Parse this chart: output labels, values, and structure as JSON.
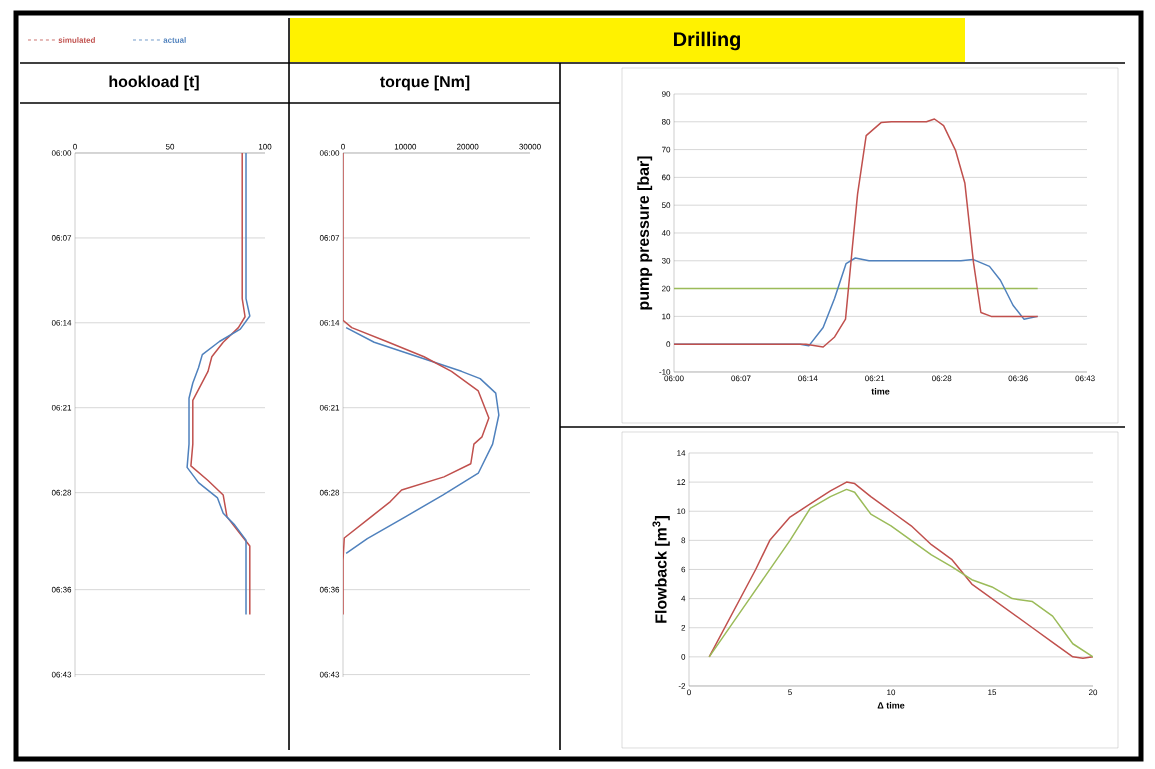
{
  "chart_data": [
    {
      "type": "line",
      "title": "hookload [t]",
      "annotations": [
        "Drilling"
      ],
      "legend": "top left",
      "xlim": [
        0,
        100
      ],
      "xticks": [
        0,
        50,
        100
      ],
      "ylim": [
        6.72,
        6
      ],
      "yticks": [
        {
          "value": 6,
          "label": "06:00"
        },
        {
          "value": 6.1167,
          "label": "06:07"
        },
        {
          "value": 6.2333,
          "label": "06:14"
        },
        {
          "value": 6.35,
          "label": "06:21"
        },
        {
          "value": 6.4667,
          "label": "06:28"
        },
        {
          "value": 6.6,
          "label": "06:36"
        },
        {
          "value": 6.7167,
          "label": "06:43"
        }
      ],
      "grid": "y",
      "series": [
        {
          "name": "simulated",
          "color": "#c0504d",
          "x": [
            88,
            88,
            89.5,
            86,
            78,
            72,
            70,
            66,
            62,
            62,
            61,
            70,
            78,
            80,
            86,
            92,
            92
          ],
          "values": [
            6,
            6.2,
            6.225,
            6.24,
            6.26,
            6.28,
            6.3,
            6.32,
            6.34,
            6.4,
            6.43,
            6.45,
            6.47,
            6.5,
            6.52,
            6.54,
            6.634
          ]
        },
        {
          "name": "actual",
          "color": "#4f81bd",
          "x": [
            90,
            90,
            92,
            87,
            76,
            67,
            65,
            62,
            60,
            60,
            59,
            65,
            75,
            78,
            84,
            90,
            90
          ],
          "values": [
            6,
            6.2,
            6.224,
            6.242,
            6.259,
            6.277,
            6.295,
            6.316,
            6.337,
            6.4,
            6.432,
            6.453,
            6.474,
            6.495,
            6.511,
            6.532,
            6.634
          ]
        }
      ]
    },
    {
      "type": "line",
      "title": "torque [Nm]",
      "xlim": [
        0,
        30000
      ],
      "xticks": [
        0,
        10000,
        20000,
        30000
      ],
      "ylim": [
        6.72,
        6
      ],
      "yticks": [
        {
          "value": 6,
          "label": "06:00"
        },
        {
          "value": 6.1167,
          "label": "06:07"
        },
        {
          "value": 6.2333,
          "label": "06:14"
        },
        {
          "value": 6.35,
          "label": "06:21"
        },
        {
          "value": 6.4667,
          "label": "06:28"
        },
        {
          "value": 6.6,
          "label": "06:36"
        },
        {
          "value": 6.7167,
          "label": "06:43"
        }
      ],
      "grid": "y",
      "series": [
        {
          "color": "#4f81bd",
          "x": [
            500,
            5000,
            12000,
            19000,
            22000,
            24500,
            25000,
            24000,
            21700,
            16000,
            10000,
            3900,
            500
          ],
          "values": [
            6.24,
            6.26,
            6.28,
            6.3,
            6.31,
            6.33,
            6.36,
            6.4,
            6.44,
            6.47,
            6.5,
            6.53,
            6.55
          ]
        },
        {
          "color": "#c0504d",
          "x": [
            0,
            0,
            1400,
            7000,
            13000,
            17400,
            21700,
            23400,
            22300,
            21000,
            20500,
            16200,
            9400,
            7600,
            4500,
            200,
            0,
            0
          ],
          "values": [
            6,
            6.23,
            6.24,
            6.259,
            6.28,
            6.3,
            6.327,
            6.364,
            6.39,
            6.4,
            6.427,
            6.445,
            6.463,
            6.479,
            6.5,
            6.529,
            6.56,
            6.634
          ]
        }
      ]
    },
    {
      "type": "line",
      "xlabel": "time",
      "ylabel": "pump pressure [bar]",
      "xlim": [
        6,
        6.72
      ],
      "xticks": [
        {
          "value": 6,
          "label": "06:00"
        },
        {
          "value": 6.1167,
          "label": "06:07"
        },
        {
          "value": 6.2333,
          "label": "06:14"
        },
        {
          "value": 6.35,
          "label": "06:21"
        },
        {
          "value": 6.4667,
          "label": "06:28"
        },
        {
          "value": 6.6,
          "label": "06:36"
        },
        {
          "value": 6.7167,
          "label": "06:43"
        }
      ],
      "ylim": [
        -10,
        90
      ],
      "yticks": [
        -10,
        0,
        10,
        20,
        30,
        40,
        50,
        60,
        70,
        80,
        90
      ],
      "grid": "y",
      "series": [
        {
          "color": "#9bbb59",
          "x": [
            6,
            6.634
          ],
          "values": [
            20,
            20
          ]
        },
        {
          "color": "#4f81bd",
          "x": [
            6,
            6.22,
            6.235,
            6.26,
            6.28,
            6.3,
            6.316,
            6.34,
            6.5,
            6.521,
            6.55,
            6.569,
            6.591,
            6.61,
            6.634
          ],
          "values": [
            0,
            0,
            -0.6,
            6,
            16.5,
            29,
            31,
            30,
            30,
            30.5,
            28,
            23,
            14,
            9,
            10
          ]
        },
        {
          "color": "#c0504d",
          "x": [
            6,
            6.23,
            6.26,
            6.28,
            6.299,
            6.311,
            6.32,
            6.335,
            6.361,
            6.379,
            6.44,
            6.454,
            6.47,
            6.491,
            6.507,
            6.522,
            6.535,
            6.553,
            6.634
          ],
          "values": [
            0,
            0,
            -1,
            2.6,
            9,
            35,
            54,
            75,
            79.7,
            80,
            80,
            81,
            78.6,
            69.6,
            58,
            29.5,
            11.4,
            10,
            10
          ]
        }
      ]
    },
    {
      "type": "line",
      "xlabel": "Δ time",
      "ylabel": "Flowback [m$^{3}$]",
      "xlim": [
        0,
        20
      ],
      "xticks": [
        0,
        5,
        10,
        15,
        20
      ],
      "ylim": [
        -2,
        14
      ],
      "yticks": [
        -2,
        0,
        2,
        4,
        6,
        8,
        10,
        12,
        14
      ],
      "grid": "y",
      "series": [
        {
          "color": "#c0504d",
          "x": [
            1,
            3.3,
            4,
            5,
            6,
            7,
            7.8,
            8.2,
            9,
            10,
            11,
            12,
            13,
            14,
            15,
            16,
            17,
            18,
            19,
            19.5,
            20
          ],
          "values": [
            0,
            6,
            8,
            9.6,
            10.5,
            11.4,
            12,
            11.9,
            11,
            10,
            9,
            7.7,
            6.7,
            5,
            4,
            3,
            2,
            1,
            0,
            -0.1,
            0
          ]
        },
        {
          "color": "#9bbb59",
          "x": [
            1,
            3,
            5,
            6,
            7,
            7.8,
            8.2,
            9,
            10,
            11,
            12,
            13,
            14,
            15,
            16,
            17,
            18,
            19,
            20
          ],
          "values": [
            0,
            4,
            8,
            10.2,
            11,
            11.5,
            11.3,
            9.8,
            9,
            8,
            7,
            6.2,
            5.3,
            4.8,
            4,
            3.8,
            2.8,
            0.9,
            0
          ]
        }
      ]
    }
  ]
}
